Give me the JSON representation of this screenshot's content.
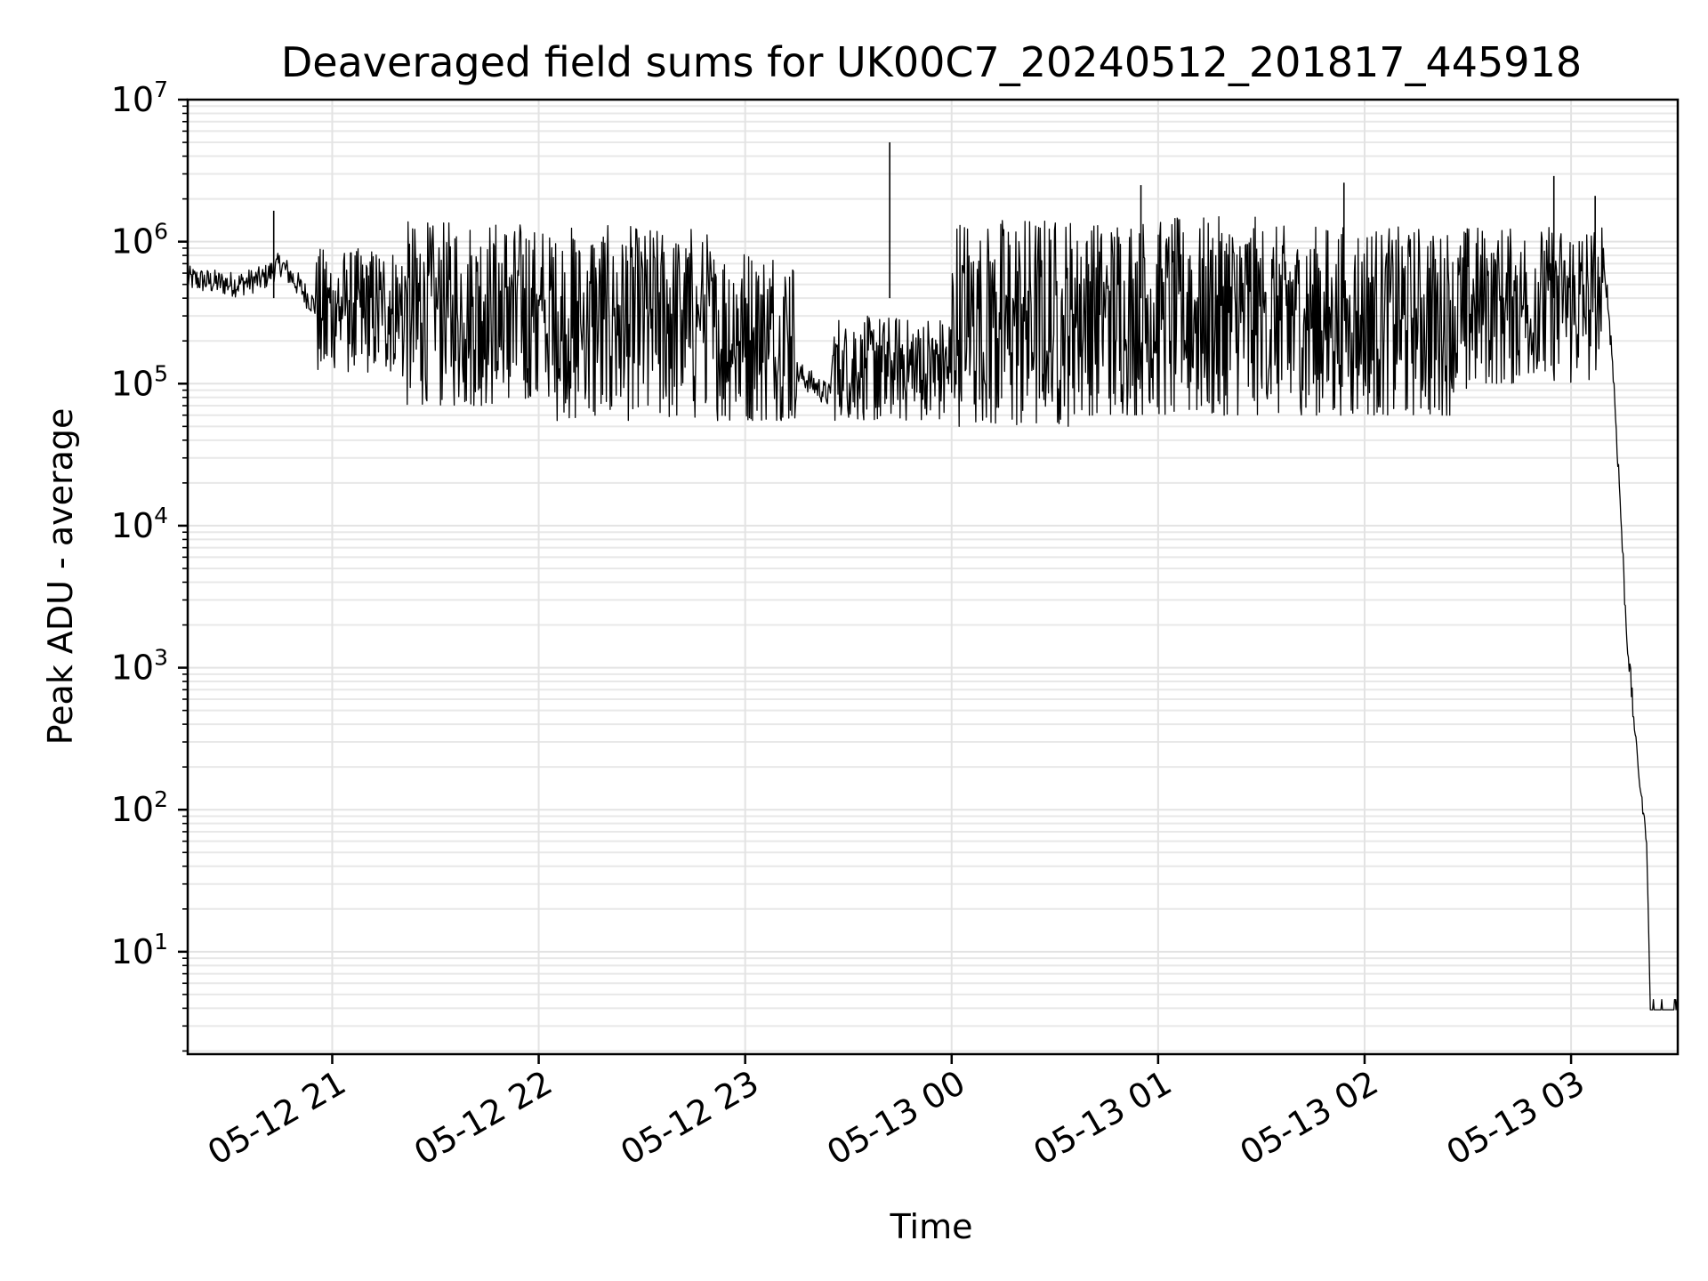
{
  "chart_data": {
    "type": "line",
    "title": "Deaveraged field sums for UK00C7_20240512_201817_445918",
    "xlabel": "Time",
    "ylabel": "Peak ADU - average",
    "yscale": "log",
    "ylim": [
      1.9,
      10000000
    ],
    "xlim": [
      "05-12 20:18",
      "05-13 03:31"
    ],
    "grid": true,
    "color": "#000000",
    "x_ticks": [
      "05-12 21",
      "05-12 22",
      "05-12 23",
      "05-13 00",
      "05-13 01",
      "05-13 02",
      "05-13 03"
    ],
    "y_ticks": [
      {
        "value": 10,
        "base": "10",
        "exp": "1"
      },
      {
        "value": 100,
        "base": "10",
        "exp": "2"
      },
      {
        "value": 1000,
        "base": "10",
        "exp": "3"
      },
      {
        "value": 10000,
        "base": "10",
        "exp": "4"
      },
      {
        "value": 100000,
        "base": "10",
        "exp": "5"
      },
      {
        "value": 1000000,
        "base": "10",
        "exp": "6"
      },
      {
        "value": 10000000,
        "base": "10",
        "exp": "7"
      }
    ],
    "series": [
      {
        "x": [
          "05-12 20:18",
          "05-12 20:25",
          "05-12 20:32",
          "05-12 20:40",
          "05-12 20:45",
          "05-12 20:50",
          "05-12 20:55",
          "05-12 21:00",
          "05-12 21:05",
          "05-12 21:10",
          "05-12 21:15",
          "05-12 21:20",
          "05-12 21:30",
          "05-12 21:45",
          "05-12 22:00",
          "05-12 22:15",
          "05-12 22:30",
          "05-12 22:45",
          "05-12 23:00",
          "05-12 23:15",
          "05-12 23:25",
          "05-12 23:40",
          "05-13 00:00",
          "05-13 00:20",
          "05-13 00:40",
          "05-13 01:00",
          "05-13 01:20",
          "05-13 01:40",
          "05-13 02:00",
          "05-13 02:20",
          "05-13 02:40",
          "05-13 02:55",
          "05-13 03:05",
          "05-13 03:10",
          "05-13 03:12",
          "05-13 03:14",
          "05-13 03:16",
          "05-13 03:18",
          "05-13 03:20",
          "05-13 03:22",
          "05-13 03:23",
          "05-13 03:31"
        ],
        "y": [
          550000,
          520000,
          500000,
          550000,
          700000,
          500000,
          350000,
          320000,
          350000,
          500000,
          650000,
          800000,
          900000,
          850000,
          800000,
          700000,
          600000,
          500000,
          400000,
          120000,
          80000,
          70000,
          65000,
          70000,
          75000,
          300000,
          400000,
          400000,
          450000,
          450000,
          450000,
          500000,
          550000,
          600000,
          150000,
          20000,
          2000,
          500,
          150,
          60,
          3.9,
          3.9
        ]
      }
    ],
    "range_bands": [
      {
        "from": "05-12 20:55",
        "to": "05-12 21:20",
        "low": 120000,
        "high": 900000
      },
      {
        "from": "05-12 21:20",
        "to": "05-12 22:00",
        "low": 70000,
        "high": 1400000
      },
      {
        "from": "05-12 22:00",
        "to": "05-12 22:50",
        "low": 55000,
        "high": 1300000
      },
      {
        "from": "05-12 22:50",
        "to": "05-12 23:15",
        "low": 55000,
        "high": 900000
      },
      {
        "from": "05-12 23:25",
        "to": "05-13 00:00",
        "low": 55000,
        "high": 300000
      },
      {
        "from": "05-13 00:00",
        "to": "05-13 00:35",
        "low": 50000,
        "high": 1500000
      },
      {
        "from": "05-13 00:35",
        "to": "05-13 01:30",
        "low": 60000,
        "high": 1500000
      },
      {
        "from": "05-13 01:30",
        "to": "05-13 02:30",
        "low": 60000,
        "high": 1300000
      },
      {
        "from": "05-13 02:30",
        "to": "05-13 03:10",
        "low": 100000,
        "high": 1300000
      }
    ],
    "annotations": [
      {
        "x": "05-12 20:43",
        "y": 1650000
      },
      {
        "x": "05-12 23:42",
        "y": 5000000
      },
      {
        "x": "05-13 00:55",
        "y": 2500000
      },
      {
        "x": "05-13 01:54",
        "y": 2600000
      },
      {
        "x": "05-13 02:55",
        "y": 2900000
      },
      {
        "x": "05-13 03:07",
        "y": 2100000
      }
    ]
  }
}
